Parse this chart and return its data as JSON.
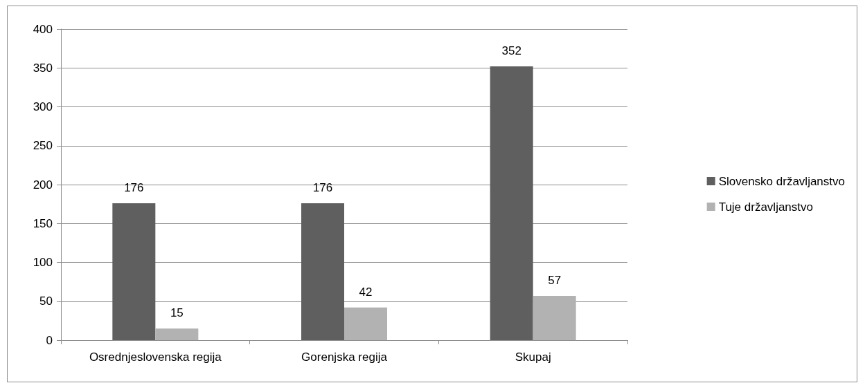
{
  "chart_data": {
    "type": "bar",
    "categories": [
      "Osrednjeslovenska regija",
      "Gorenjska regija",
      "Skupaj"
    ],
    "series": [
      {
        "name": "Slovensko državljanstvo",
        "color": "#5f5f5f",
        "values": [
          176,
          176,
          352
        ]
      },
      {
        "name": "Tuje državljanstvo",
        "color": "#b2b2b2",
        "values": [
          15,
          42,
          57
        ]
      }
    ],
    "ylim": [
      0,
      400
    ],
    "yticks": [
      0,
      50,
      100,
      150,
      200,
      250,
      300,
      350,
      400
    ],
    "grid": "y",
    "legend": "right",
    "data_labels": true
  }
}
